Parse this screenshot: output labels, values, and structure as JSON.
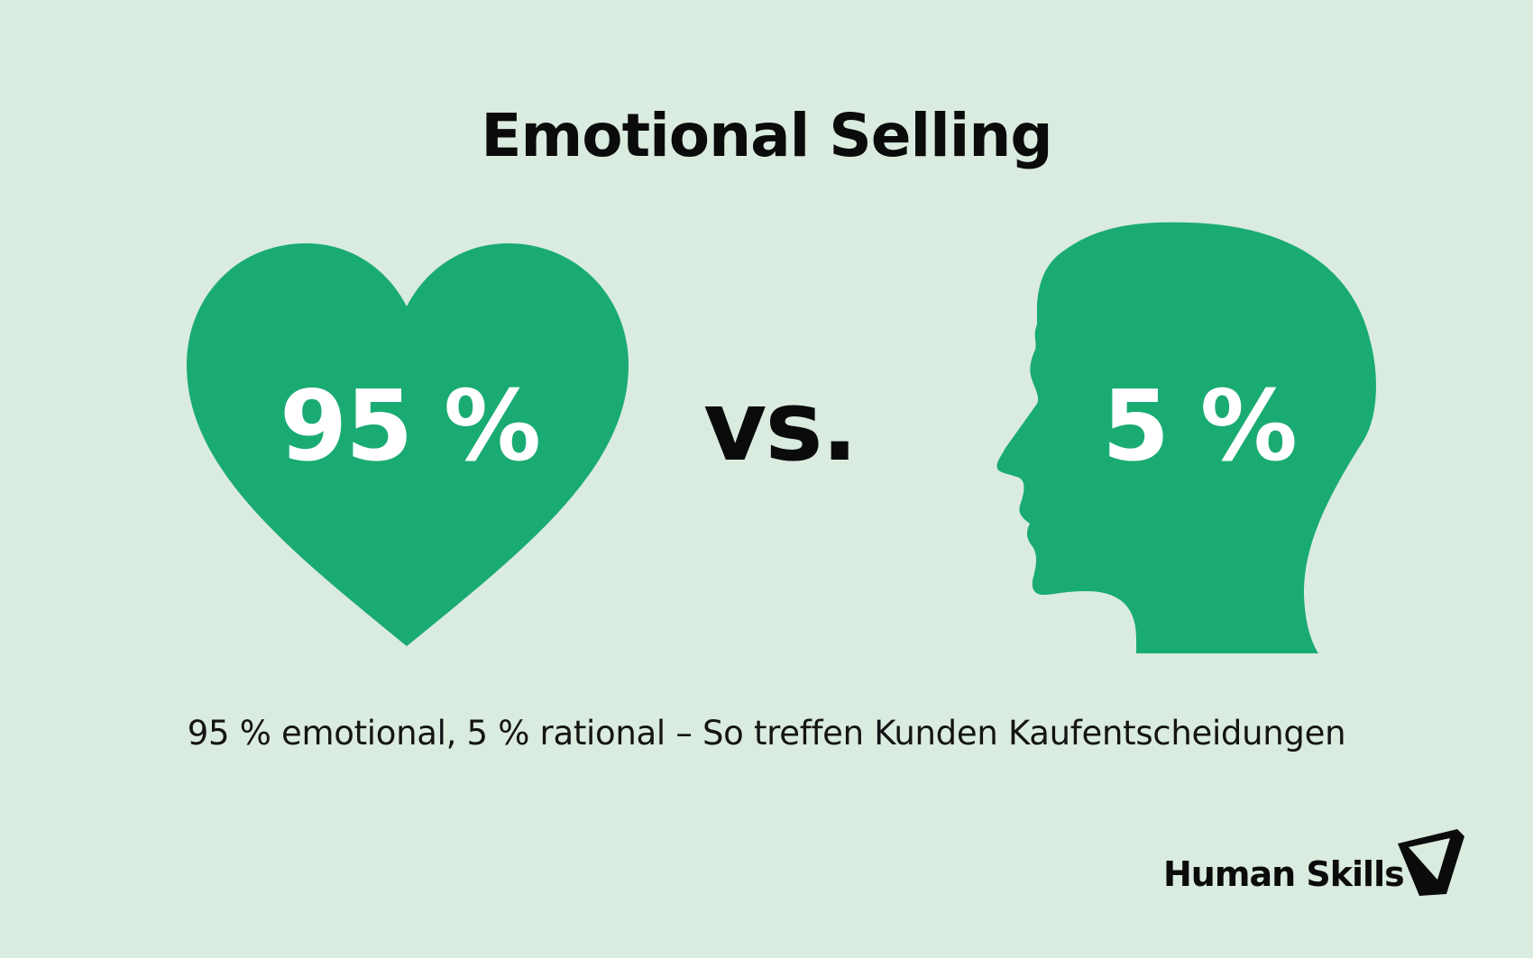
{
  "title": "Emotional Selling",
  "heart": {
    "icon": "heart-icon",
    "value": "95 %",
    "color": "#1aab73"
  },
  "versus": "vs.",
  "head": {
    "icon": "head-profile-icon",
    "value": "5 %",
    "color": "#1aab73"
  },
  "caption": "95 % emotional, 5 % rational – So treffen Kunden Kaufentscheidungen",
  "brand": {
    "name": "Human Skills",
    "logo": "triangle-logo-icon"
  },
  "colors": {
    "background": "#daebe0",
    "accent": "#1aab73",
    "text": "#0b0b0b"
  }
}
